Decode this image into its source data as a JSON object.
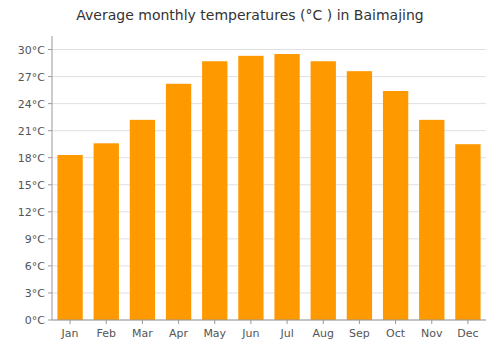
{
  "chart_data": {
    "type": "bar",
    "title": "Average monthly temperatures (°C ) in Baimajing",
    "categories": [
      "Jan",
      "Feb",
      "Mar",
      "Apr",
      "May",
      "Jun",
      "Jul",
      "Aug",
      "Sep",
      "Oct",
      "Nov",
      "Dec"
    ],
    "values": [
      18.3,
      19.6,
      22.2,
      26.2,
      28.7,
      29.3,
      29.5,
      28.7,
      27.6,
      25.4,
      22.2,
      19.5
    ],
    "color": "#FF9900",
    "ylim": [
      0,
      31.5
    ],
    "yticks": [
      {
        "value": 0,
        "label": "0°C"
      },
      {
        "value": 3,
        "label": "3°C"
      },
      {
        "value": 6,
        "label": "6°C"
      },
      {
        "value": 9,
        "label": "9°C"
      },
      {
        "value": 12,
        "label": "12°C"
      },
      {
        "value": 15,
        "label": "15°C"
      },
      {
        "value": 18,
        "label": "18°C"
      },
      {
        "value": 21,
        "label": "21°C"
      },
      {
        "value": 24,
        "label": "24°C"
      },
      {
        "value": 27,
        "label": "27°C"
      },
      {
        "value": 30,
        "label": "30°C"
      }
    ],
    "grid": true
  }
}
